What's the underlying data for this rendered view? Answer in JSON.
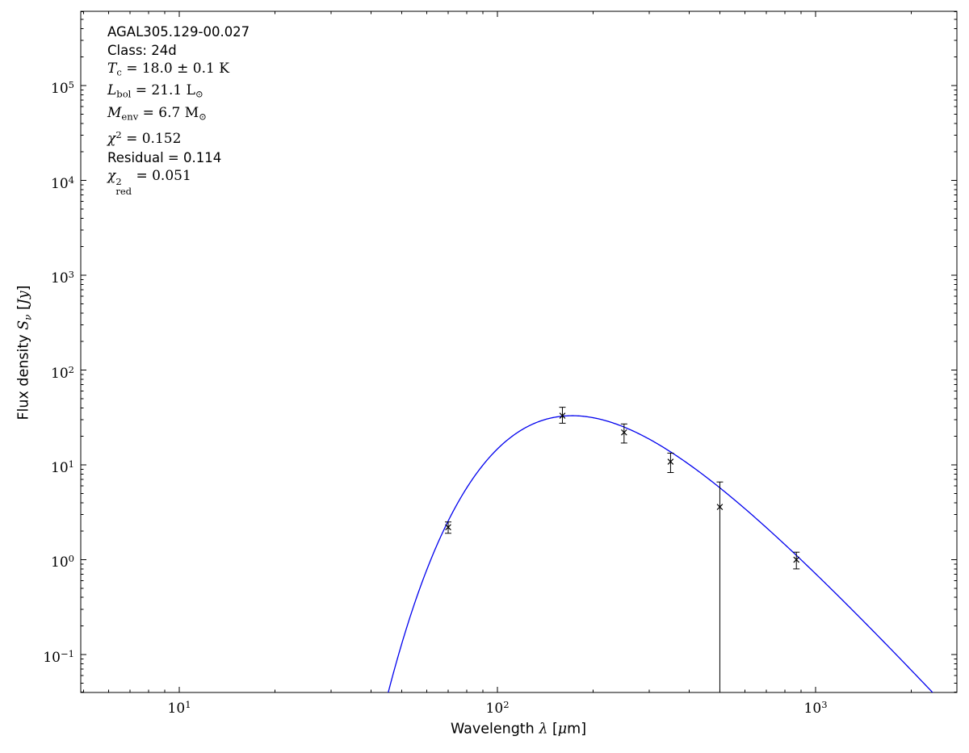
{
  "figure": {
    "background": "#ffffff",
    "frame_color": "#000000",
    "accent_color": "#0000ff"
  },
  "annotation": {
    "lines": [
      {
        "style": "sans",
        "segs": [
          {
            "t": "AGAL305.129-00.027"
          }
        ]
      },
      {
        "style": "sans",
        "segs": [
          {
            "t": "Class: 24d"
          }
        ]
      },
      {
        "style": "math",
        "segs": [
          {
            "it": "T"
          },
          {
            "sub": "c"
          },
          {
            "t": " = 18.0 ± 0.1 K"
          }
        ]
      },
      {
        "style": "math",
        "segs": [
          {
            "it": "L"
          },
          {
            "sub": "bol"
          },
          {
            "t": " = 21.1 L"
          },
          {
            "sub": "⊙"
          }
        ]
      },
      {
        "style": "math",
        "segs": [
          {
            "it": "M"
          },
          {
            "sub": "env"
          },
          {
            "t": " = 6.7 M"
          },
          {
            "sub": "⊙"
          }
        ]
      },
      {
        "style": "math",
        "segs": [
          {
            "it": "χ"
          },
          {
            "sup": "2"
          },
          {
            "t": " = 0.152"
          }
        ]
      },
      {
        "style": "sans",
        "segs": [
          {
            "t": "Residual = 0.114"
          }
        ]
      },
      {
        "style": "math",
        "segs": [
          {
            "it": "χ"
          },
          {
            "stack": {
              "sup": "2",
              "sub": "red"
            }
          },
          {
            "t": " = 0.051"
          }
        ]
      }
    ]
  },
  "axes": {
    "x": {
      "label": "Wavelength λ [μm]",
      "segments": [
        {
          "sans": "Wavelength "
        },
        {
          "it": "λ"
        },
        {
          "sans": " ["
        },
        {
          "it": "μ"
        },
        {
          "sans": "m]"
        }
      ]
    },
    "y": {
      "label": "Flux density Sν [Jy]",
      "segments": [
        {
          "sans": "Flux density "
        },
        {
          "it": "S"
        },
        {
          "subit": "ν"
        },
        {
          "sans": " ["
        },
        {
          "it": "Jy"
        },
        {
          "sans": "]"
        }
      ]
    }
  },
  "chart_data": {
    "type": "scatter",
    "title": "",
    "x_scale": "log",
    "y_scale": "log",
    "xlim": [
      4.9,
      2780
    ],
    "ylim": [
      0.0398,
      607000
    ],
    "xlabel": "Wavelength λ [μm]",
    "ylabel": "Flux density Sν [Jy]",
    "x_tick_exponents": [
      1,
      2,
      3
    ],
    "y_tick_exponents": [
      -1,
      0,
      1,
      2,
      3,
      4,
      5
    ],
    "grid": false,
    "legend": "none",
    "marker": "x",
    "marker_color": "#000000",
    "points": [
      {
        "x": 70,
        "y": 2.2,
        "err_lo": 0.3,
        "err_hi": 0.3
      },
      {
        "x": 160,
        "y": 33,
        "err_lo": 5.5,
        "err_hi": 7.5
      },
      {
        "x": 250,
        "y": 22,
        "err_lo": 5,
        "err_hi": 5
      },
      {
        "x": 350,
        "y": 10.8,
        "err_lo": 2.5,
        "err_hi": 2.5
      },
      {
        "x": 500,
        "y": 3.6,
        "err_lo": null,
        "err_hi": 3.0
      },
      {
        "x": 870,
        "y": 1.0,
        "err_lo": 0.2,
        "err_hi": 0.2
      }
    ],
    "model_curve": {
      "type": "greybody",
      "T_K": 18.0,
      "beta": 1.7,
      "peak_flux_jy": 33,
      "color": "#0000ee"
    },
    "source_parameters": {
      "name": "AGAL305.129-00.027",
      "class": "24d",
      "T_c": "18.0 ± 0.1 K",
      "L_bol": "21.1 L⊙",
      "M_env": "6.7 M⊙",
      "chi2": 0.152,
      "residual": 0.114,
      "chi2_red": 0.051
    }
  }
}
